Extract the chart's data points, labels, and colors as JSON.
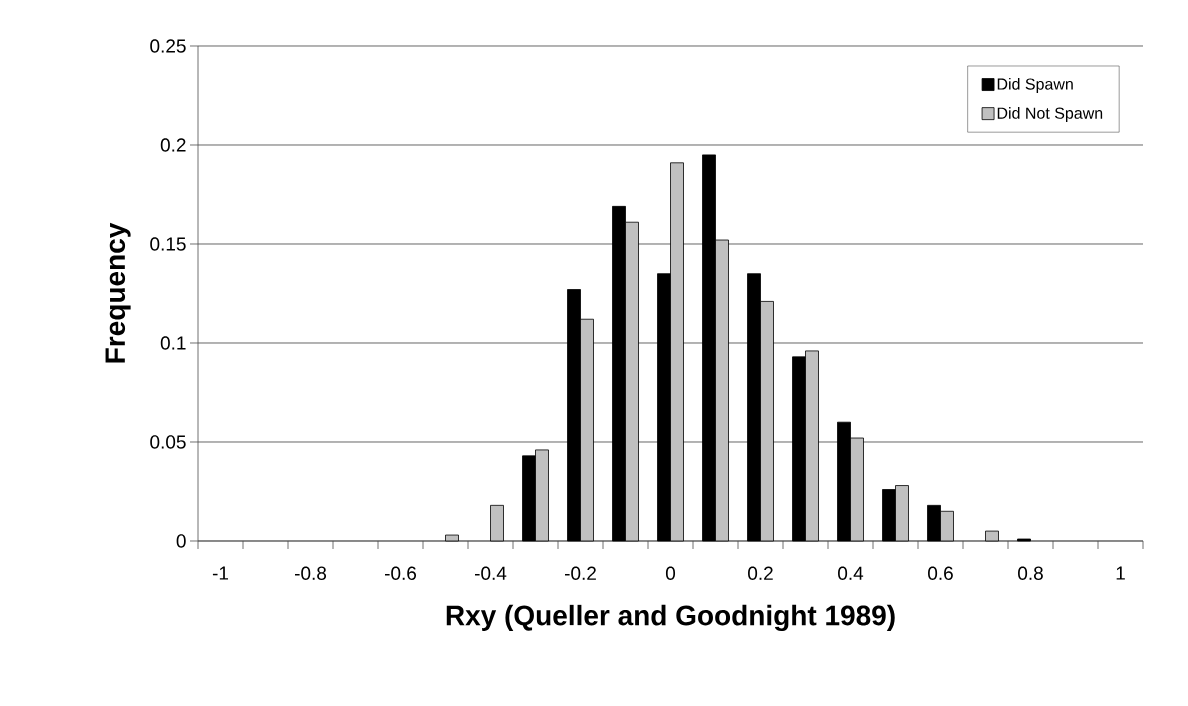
{
  "chart_data": {
    "type": "bar",
    "xlabel": "Rxy (Queller and Goodnight 1989)",
    "ylabel": "Frequency",
    "categories": [
      "-1",
      null,
      "-0.8",
      null,
      "-0.6",
      null,
      "-0.4",
      null,
      "-0.2",
      null,
      "0",
      null,
      "0.2",
      null,
      "0.4",
      null,
      "0.6",
      null,
      "0.8",
      null,
      "1"
    ],
    "series": [
      {
        "name": "Did Spawn",
        "color": "#000000",
        "values": [
          0,
          0,
          0,
          0,
          0,
          0,
          0,
          0.043,
          0.127,
          0.169,
          0.135,
          0.195,
          0.135,
          0.093,
          0.06,
          0.026,
          0.018,
          0,
          0.001,
          0,
          0
        ]
      },
      {
        "name": "Did Not Spawn",
        "color": "#c0c0c0",
        "values": [
          0,
          0,
          0,
          0,
          0,
          0.003,
          0.018,
          0.046,
          0.112,
          0.161,
          0.191,
          0.152,
          0.121,
          0.096,
          0.052,
          0.028,
          0.015,
          0.005,
          0,
          0,
          0
        ]
      }
    ],
    "ylim": [
      0,
      0.25
    ],
    "yticks": [
      0,
      0.05,
      0.1,
      0.15,
      0.2,
      0.25
    ],
    "grid": "y",
    "legend": "top right"
  }
}
